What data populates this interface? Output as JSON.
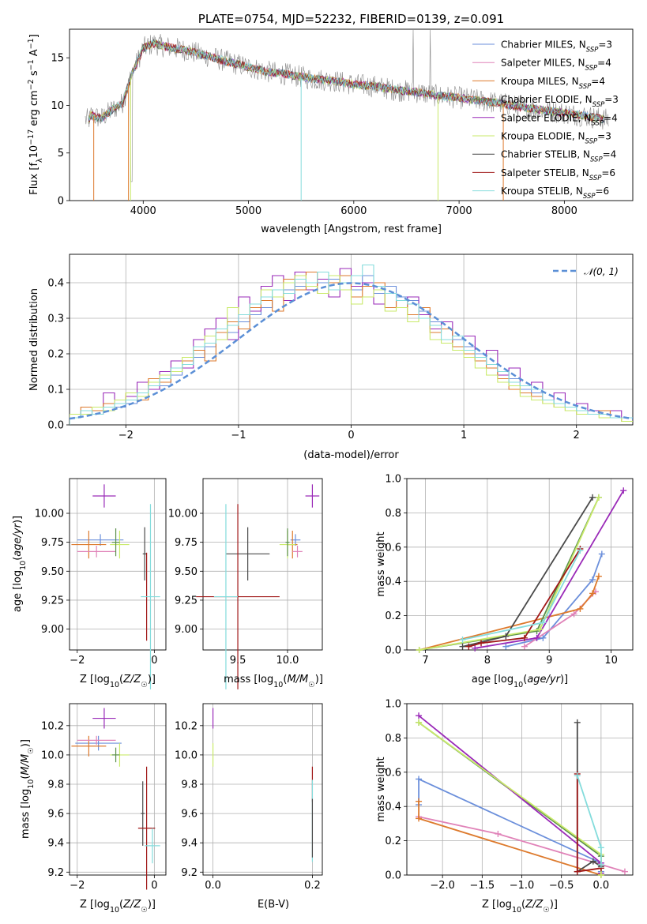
{
  "colors": {
    "Chabrier MILES": "#6b8fdb",
    "Salpeter MILES": "#e082b8",
    "Kroupa MILES": "#dd7a2d",
    "Chabrier ELODIE": "#5a8f4a",
    "Salpeter ELODIE": "#9a2ab8",
    "Kroupa ELODIE": "#c9ea6a",
    "Chabrier STELIB": "#4a4a4a",
    "Salpeter STELIB": "#a01818",
    "Kroupa STELIB": "#84dcdc",
    "gaussian": "#5b8fd6"
  },
  "chart_data": [
    {
      "id": "spectrum",
      "type": "line",
      "title": "PLATE=0754, MJD=52232, FIBERID=0139, z=0.091",
      "xlabel": "wavelength [Angstrom, rest frame]",
      "ylabel": "Flux [f_λ10^-17 erg cm^-2 s^-1 A^-1]",
      "xlim": [
        3300,
        8650
      ],
      "ylim": [
        0,
        18
      ],
      "xticks": [
        4000,
        5000,
        6000,
        7000,
        8000
      ],
      "yticks": [
        0,
        5,
        10,
        15
      ],
      "legend": "top-right",
      "legend_entries": [
        {
          "model": "Chabrier MILES",
          "nssp": "3"
        },
        {
          "model": "Salpeter MILES",
          "nssp": "4"
        },
        {
          "model": "Kroupa MILES",
          "nssp": "4"
        },
        {
          "model": "Chabrier ELODIE",
          "nssp": "3"
        },
        {
          "model": "Salpeter ELODIE",
          "nssp": "4"
        },
        {
          "model": "Kroupa ELODIE",
          "nssp": "3"
        },
        {
          "model": "Chabrier STELIB",
          "nssp": "4"
        },
        {
          "model": "Salpeter STELIB",
          "nssp": "6"
        },
        {
          "model": "Kroupa STELIB",
          "nssp": "6"
        }
      ],
      "data_envelope": {
        "x": [
          3500,
          3600,
          3700,
          3800,
          3900,
          4000,
          4100,
          4200,
          4400,
          4600,
          4800,
          5000,
          5200,
          5400,
          5600,
          5800,
          6000,
          6200,
          6400,
          6600,
          6800,
          7000,
          7200,
          7400,
          7600,
          7800,
          8000,
          8200,
          8400
        ],
        "y": [
          9.0,
          8.6,
          9.5,
          10.2,
          13.5,
          16.0,
          16.5,
          16.2,
          15.8,
          15.2,
          14.6,
          14.0,
          13.5,
          13.2,
          12.8,
          12.6,
          12.2,
          12.0,
          11.6,
          11.4,
          11.0,
          10.8,
          10.5,
          10.2,
          9.8,
          9.5,
          9.2,
          8.9,
          8.5
        ]
      }
    },
    {
      "id": "residuals",
      "type": "bar",
      "xlabel": "(data-model)/error",
      "ylabel": "Normed distribution",
      "xlim": [
        -2.5,
        2.5
      ],
      "ylim": [
        0,
        0.48
      ],
      "xticks": [
        -2,
        -1,
        0,
        1,
        2
      ],
      "yticks": [
        0.0,
        0.1,
        0.2,
        0.3,
        0.4
      ],
      "gaussian_label": "𝒩(0, 1)",
      "bin_edges_start": -2.5,
      "bin_width": 0.1,
      "series": [
        {
          "name": "Chabrier MILES",
          "values": [
            0.02,
            0.03,
            0.04,
            0.05,
            0.05,
            0.06,
            0.08,
            0.1,
            0.11,
            0.14,
            0.17,
            0.19,
            0.22,
            0.24,
            0.26,
            0.29,
            0.31,
            0.33,
            0.36,
            0.38,
            0.39,
            0.4,
            0.4,
            0.41,
            0.4,
            0.38,
            0.42,
            0.37,
            0.39,
            0.36,
            0.35,
            0.32,
            0.29,
            0.27,
            0.24,
            0.22,
            0.2,
            0.17,
            0.15,
            0.13,
            0.1,
            0.09,
            0.07,
            0.06,
            0.05,
            0.04,
            0.04,
            0.03,
            0.02,
            0.02
          ]
        },
        {
          "name": "Salpeter ELODIE",
          "values": [
            0.03,
            0.04,
            0.03,
            0.09,
            0.06,
            0.08,
            0.12,
            0.1,
            0.15,
            0.18,
            0.16,
            0.24,
            0.27,
            0.3,
            0.24,
            0.36,
            0.32,
            0.39,
            0.42,
            0.35,
            0.43,
            0.38,
            0.41,
            0.36,
            0.44,
            0.39,
            0.4,
            0.34,
            0.37,
            0.33,
            0.36,
            0.31,
            0.27,
            0.29,
            0.22,
            0.25,
            0.18,
            0.21,
            0.14,
            0.16,
            0.11,
            0.12,
            0.07,
            0.09,
            0.05,
            0.06,
            0.04,
            0.03,
            0.04,
            0.02
          ]
        },
        {
          "name": "Kroupa MILES",
          "values": [
            0.02,
            0.05,
            0.04,
            0.06,
            0.06,
            0.09,
            0.07,
            0.13,
            0.12,
            0.16,
            0.18,
            0.21,
            0.18,
            0.26,
            0.29,
            0.27,
            0.33,
            0.35,
            0.32,
            0.41,
            0.38,
            0.43,
            0.37,
            0.4,
            0.42,
            0.36,
            0.39,
            0.4,
            0.33,
            0.35,
            0.31,
            0.33,
            0.26,
            0.27,
            0.22,
            0.2,
            0.18,
            0.16,
            0.13,
            0.1,
            0.09,
            0.08,
            0.06,
            0.05,
            0.04,
            0.03,
            0.03,
            0.04,
            0.02,
            0.01
          ]
        },
        {
          "name": "Kroupa ELODIE",
          "values": [
            0.03,
            0.03,
            0.05,
            0.04,
            0.07,
            0.09,
            0.08,
            0.12,
            0.14,
            0.15,
            0.19,
            0.22,
            0.25,
            0.24,
            0.33,
            0.31,
            0.34,
            0.38,
            0.36,
            0.4,
            0.42,
            0.39,
            0.37,
            0.42,
            0.38,
            0.34,
            0.36,
            0.38,
            0.32,
            0.33,
            0.29,
            0.3,
            0.24,
            0.23,
            0.21,
            0.19,
            0.16,
            0.14,
            0.12,
            0.11,
            0.08,
            0.07,
            0.06,
            0.05,
            0.04,
            0.03,
            0.03,
            0.02,
            0.02,
            0.01
          ]
        },
        {
          "name": "Kroupa STELIB",
          "values": [
            0.02,
            0.04,
            0.03,
            0.05,
            0.06,
            0.07,
            0.09,
            0.11,
            0.13,
            0.16,
            0.17,
            0.22,
            0.23,
            0.27,
            0.28,
            0.31,
            0.34,
            0.36,
            0.38,
            0.37,
            0.41,
            0.4,
            0.43,
            0.38,
            0.4,
            0.42,
            0.45,
            0.39,
            0.37,
            0.35,
            0.34,
            0.3,
            0.28,
            0.24,
            0.25,
            0.21,
            0.19,
            0.17,
            0.15,
            0.12,
            0.11,
            0.1,
            0.07,
            0.06,
            0.05,
            0.04,
            0.03,
            0.03,
            0.02,
            0.02
          ]
        }
      ]
    },
    {
      "id": "age-vs-Z",
      "type": "scatter",
      "xlabel": "Z [log10(Z/Z☉)]",
      "ylabel": "age [log10(age/yr)]",
      "xlim": [
        -2.2,
        0.3
      ],
      "ylim": [
        8.82,
        10.3
      ],
      "xticks": [
        -2,
        0
      ],
      "yticks": [
        9.0,
        9.25,
        9.5,
        9.75,
        10.0
      ],
      "points": [
        {
          "model": "Salpeter ELODIE",
          "x": -1.3,
          "y": 10.15,
          "xerr": 0.3,
          "yerr": 0.1
        },
        {
          "model": "Chabrier MILES",
          "x": -1.4,
          "y": 9.77,
          "xerr": 0.6,
          "yerr": 0.05
        },
        {
          "model": "Kroupa MILES",
          "x": -1.7,
          "y": 9.73,
          "xerr": 0.45,
          "yerr": 0.12
        },
        {
          "model": "Salpeter MILES",
          "x": -1.5,
          "y": 9.67,
          "xerr": 0.5,
          "yerr": 0.05
        },
        {
          "model": "Kroupa ELODIE",
          "x": -0.9,
          "y": 9.73,
          "xerr": 0.25,
          "yerr": 0.12
        },
        {
          "model": "Chabrier ELODIE",
          "x": -1.0,
          "y": 9.75,
          "xerr": 0.1,
          "yerr": 0.12
        },
        {
          "model": "Chabrier STELIB",
          "x": -0.25,
          "y": 9.65,
          "xerr": 0.05,
          "yerr": 0.23
        },
        {
          "model": "Salpeter STELIB",
          "x": -0.2,
          "y": 9.28,
          "xerr": 0.02,
          "yerr": 0.38
        },
        {
          "model": "Kroupa STELIB",
          "x": -0.1,
          "y": 9.28,
          "xerr": 0.25,
          "yerr": 0.8
        }
      ]
    },
    {
      "id": "age-vs-mass",
      "type": "scatter",
      "xlabel": "mass [log10(M/M☉)]",
      "ylabel": "",
      "xlim": [
        9.15,
        10.35
      ],
      "ylim": [
        8.82,
        10.3
      ],
      "xticks": [
        9.5,
        10.0
      ],
      "yticks": [
        9.0,
        9.25,
        9.5,
        9.75,
        10.0
      ],
      "points": [
        {
          "model": "Salpeter ELODIE",
          "x": 10.25,
          "y": 10.15,
          "xerr": 0.07,
          "yerr": 0.1
        },
        {
          "model": "Chabrier MILES",
          "x": 10.08,
          "y": 9.77,
          "xerr": 0.05,
          "yerr": 0.05
        },
        {
          "model": "Kroupa MILES",
          "x": 10.05,
          "y": 9.73,
          "xerr": 0.05,
          "yerr": 0.12
        },
        {
          "model": "Salpeter MILES",
          "x": 10.1,
          "y": 9.67,
          "xerr": 0.05,
          "yerr": 0.05
        },
        {
          "model": "Kroupa ELODIE",
          "x": 10.0,
          "y": 9.73,
          "xerr": 0.08,
          "yerr": 0.12
        },
        {
          "model": "Chabrier ELODIE",
          "x": 10.0,
          "y": 9.75,
          "xerr": 0.02,
          "yerr": 0.12
        },
        {
          "model": "Chabrier STELIB",
          "x": 9.6,
          "y": 9.65,
          "xerr": 0.22,
          "yerr": 0.23
        },
        {
          "model": "Salpeter STELIB",
          "x": 9.5,
          "y": 9.28,
          "xerr": 0.42,
          "yerr": 0.8
        },
        {
          "model": "Kroupa STELIB",
          "x": 9.38,
          "y": 9.28,
          "xerr": 0.12,
          "yerr": 0.8
        }
      ]
    },
    {
      "id": "massweight-vs-age",
      "type": "line",
      "xlabel": "age [log10(age/yr)]",
      "ylabel": "mass weight",
      "xlim": [
        6.7,
        10.35
      ],
      "ylim": [
        0,
        1.0
      ],
      "xticks": [
        7,
        8,
        9,
        10
      ],
      "yticks": [
        0.0,
        0.2,
        0.4,
        0.6,
        0.8,
        1.0
      ],
      "series": [
        {
          "name": "Chabrier MILES",
          "x": [
            8.3,
            8.9,
            9.7,
            9.85
          ],
          "y": [
            0.02,
            0.07,
            0.41,
            0.56
          ]
        },
        {
          "name": "Salpeter MILES",
          "x": [
            8.6,
            9.4,
            9.75
          ],
          "y": [
            0.02,
            0.21,
            0.34
          ]
        },
        {
          "name": "Kroupa MILES",
          "x": [
            6.9,
            9.5,
            9.7,
            9.8
          ],
          "y": [
            0.0,
            0.24,
            0.33,
            0.43
          ]
        },
        {
          "name": "Chabrier ELODIE",
          "x": [
            6.9,
            8.8,
            9.8
          ],
          "y": [
            0.0,
            0.11,
            0.89
          ]
        },
        {
          "name": "Salpeter ELODIE",
          "x": [
            7.8,
            8.8,
            10.2
          ],
          "y": [
            0.01,
            0.07,
            0.93
          ]
        },
        {
          "name": "Kroupa ELODIE",
          "x": [
            6.9,
            8.85,
            9.8
          ],
          "y": [
            0.0,
            0.12,
            0.89
          ]
        },
        {
          "name": "Chabrier STELIB",
          "x": [
            7.6,
            8.3,
            9.7
          ],
          "y": [
            0.02,
            0.08,
            0.89
          ]
        },
        {
          "name": "Salpeter STELIB",
          "x": [
            7.7,
            7.9,
            8.6,
            9.5
          ],
          "y": [
            0.02,
            0.04,
            0.07,
            0.59
          ]
        },
        {
          "name": "Kroupa STELIB",
          "x": [
            7.6,
            8.9,
            9.5
          ],
          "y": [
            0.06,
            0.16,
            0.58
          ]
        }
      ]
    },
    {
      "id": "mass-vs-Z",
      "type": "scatter",
      "xlabel": "Z [log10(Z/Z☉)]",
      "ylabel": "mass [log10(M/M☉)]",
      "xlim": [
        -2.2,
        0.3
      ],
      "ylim": [
        9.18,
        10.35
      ],
      "xticks": [
        -2,
        0
      ],
      "yticks": [
        9.2,
        9.4,
        9.6,
        9.8,
        10.0,
        10.2
      ],
      "points": [
        {
          "model": "Salpeter ELODIE",
          "x": -1.3,
          "y": 10.25,
          "xerr": 0.3,
          "yerr": 0.07
        },
        {
          "model": "Chabrier MILES",
          "x": -1.45,
          "y": 10.08,
          "xerr": 0.6,
          "yerr": 0.05
        },
        {
          "model": "Kroupa MILES",
          "x": -1.7,
          "y": 10.06,
          "xerr": 0.45,
          "yerr": 0.07
        },
        {
          "model": "Salpeter MILES",
          "x": -1.5,
          "y": 10.1,
          "xerr": 0.5,
          "yerr": 0.03
        },
        {
          "model": "Kroupa ELODIE",
          "x": -0.9,
          "y": 10.0,
          "xerr": 0.25,
          "yerr": 0.08
        },
        {
          "model": "Chabrier ELODIE",
          "x": -1.0,
          "y": 10.0,
          "xerr": 0.1,
          "yerr": 0.05
        },
        {
          "model": "Chabrier STELIB",
          "x": -0.3,
          "y": 9.6,
          "xerr": 0.05,
          "yerr": 0.22
        },
        {
          "model": "Salpeter STELIB",
          "x": -0.2,
          "y": 9.5,
          "xerr": 0.22,
          "yerr": 0.42
        },
        {
          "model": "Kroupa STELIB",
          "x": -0.05,
          "y": 9.38,
          "xerr": 0.2,
          "yerr": 0.12
        }
      ]
    },
    {
      "id": "mass-vs-EBV",
      "type": "scatter",
      "xlabel": "E(B-V)",
      "ylabel": "",
      "xlim": [
        -0.02,
        0.22
      ],
      "ylim": [
        9.18,
        10.35
      ],
      "xticks": [
        0.0,
        0.2
      ],
      "yticks": [
        9.2,
        9.4,
        9.6,
        9.8,
        10.0,
        10.2
      ],
      "points": [
        {
          "model": "Salpeter ELODIE",
          "x": 0.0,
          "y": 10.25,
          "xerr": 0.0,
          "yerr": 0.07
        },
        {
          "model": "Kroupa ELODIE",
          "x": 0.0,
          "y": 10.0,
          "xerr": 0.0,
          "yerr": 0.08
        },
        {
          "model": "Salpeter STELIB",
          "x": 0.2,
          "y": 9.8,
          "xerr": 0.0,
          "yerr": 0.12
        },
        {
          "model": "Kroupa STELIB",
          "x": 0.2,
          "y": 9.55,
          "xerr": 0.0,
          "yerr": 0.28
        },
        {
          "model": "Chabrier STELIB",
          "x": 0.2,
          "y": 9.5,
          "xerr": 0.0,
          "yerr": 0.2
        }
      ]
    },
    {
      "id": "massweight-vs-Z",
      "type": "line",
      "xlabel": "Z [log10(Z/Z☉)]",
      "ylabel": "mass weight",
      "xlim": [
        -2.45,
        0.4
      ],
      "ylim": [
        0,
        1.0
      ],
      "xticks": [
        -2.0,
        -1.5,
        -1.0,
        -0.5,
        0.0
      ],
      "yticks": [
        0.0,
        0.2,
        0.4,
        0.6,
        0.8,
        1.0
      ],
      "series": [
        {
          "name": "Chabrier MILES",
          "x": [
            -2.3,
            -2.3,
            0.0,
            0.0
          ],
          "y": [
            0.41,
            0.56,
            0.07,
            0.02
          ]
        },
        {
          "name": "Salpeter MILES",
          "x": [
            -2.3,
            -1.3,
            0.3
          ],
          "y": [
            0.34,
            0.24,
            0.02
          ]
        },
        {
          "name": "Kroupa MILES",
          "x": [
            -2.3,
            -2.3,
            0.0
          ],
          "y": [
            0.43,
            0.33,
            0.0
          ]
        },
        {
          "name": "Chabrier ELODIE",
          "x": [
            -2.3,
            0.0,
            0.0
          ],
          "y": [
            0.89,
            0.11,
            0.0
          ]
        },
        {
          "name": "Salpeter ELODIE",
          "x": [
            -2.3,
            0.0,
            0.0
          ],
          "y": [
            0.93,
            0.07,
            0.01
          ]
        },
        {
          "name": "Kroupa ELODIE",
          "x": [
            -2.3,
            0.0,
            0.0
          ],
          "y": [
            0.89,
            0.12,
            0.0
          ]
        },
        {
          "name": "Chabrier STELIB",
          "x": [
            -0.3,
            -0.3,
            -0.1,
            0.0
          ],
          "y": [
            0.89,
            0.02,
            0.08,
            0.05
          ]
        },
        {
          "name": "Salpeter STELIB",
          "x": [
            -0.3,
            -0.3,
            0.0
          ],
          "y": [
            0.59,
            0.02,
            0.04
          ]
        },
        {
          "name": "Kroupa STELIB",
          "x": [
            -0.3,
            0.0,
            0.0
          ],
          "y": [
            0.58,
            0.16,
            0.06
          ]
        }
      ]
    }
  ]
}
